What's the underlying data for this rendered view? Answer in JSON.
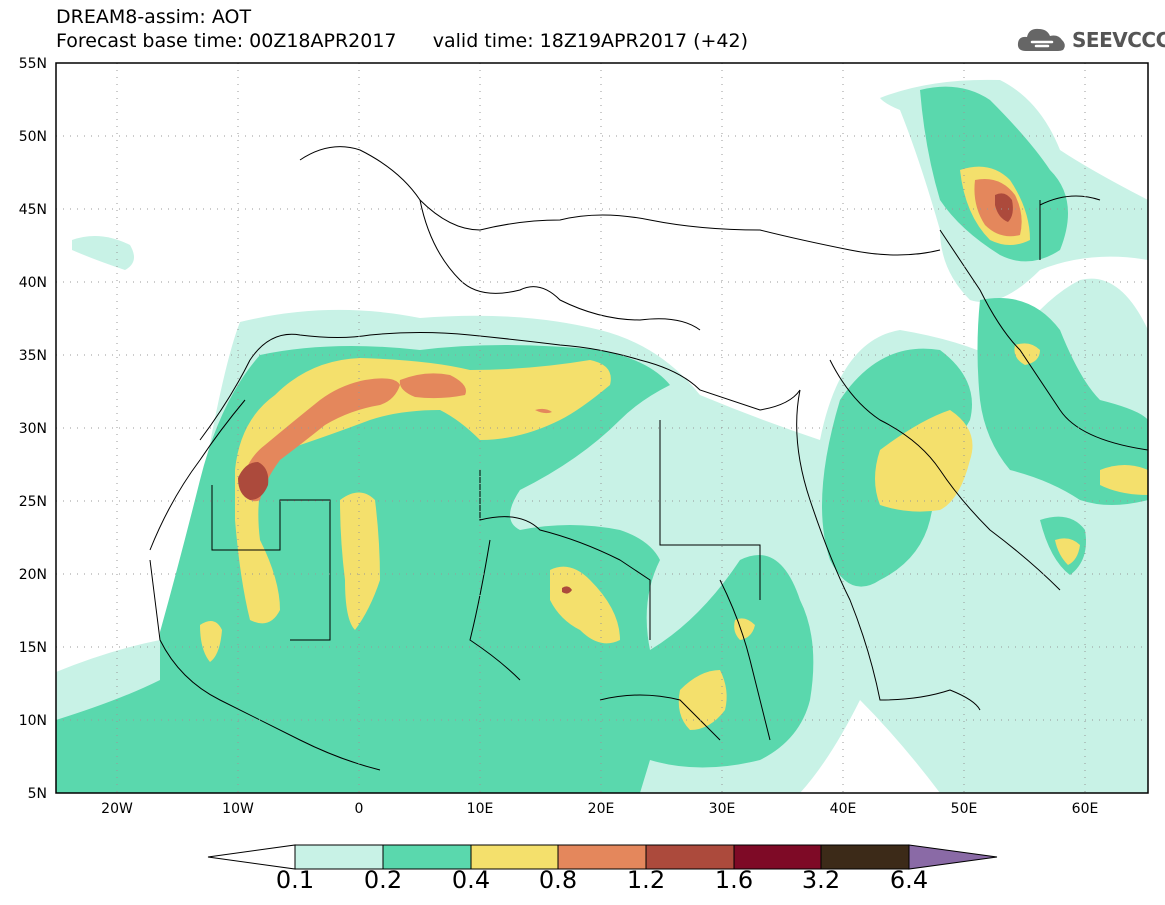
{
  "title": {
    "line1": "DREAM8-assim: AOT",
    "line2_base": "Forecast base time: 00Z18APR2017",
    "line2_valid": "valid time: 18Z19APR2017 (+42)"
  },
  "logo": {
    "text": "SEEVCCC",
    "icon": "cloud-icon"
  },
  "map": {
    "lon_range": [
      -25,
      65
    ],
    "lat_range": [
      5,
      55
    ],
    "lon_ticks": [
      "20W",
      "10W",
      "0",
      "10E",
      "20E",
      "30E",
      "40E",
      "50E",
      "60E"
    ],
    "lat_ticks": [
      "55N",
      "50N",
      "45N",
      "40N",
      "35N",
      "30N",
      "25N",
      "20N",
      "15N",
      "10N",
      "5N"
    ],
    "grid": "dotted"
  },
  "colorbar": {
    "labels": [
      "0.1",
      "0.2",
      "0.4",
      "0.8",
      "1.2",
      "1.6",
      "3.2",
      "6.4"
    ],
    "colors": [
      "#c8f2e6",
      "#5ad8ad",
      "#f4e06c",
      "#e4875c",
      "#ac4a3c",
      "#7e0a26",
      "#3c2a18"
    ],
    "under_color": "#ffffff",
    "over_color": "#8a6aa6"
  },
  "colors": {
    "level1": "#c8f2e6",
    "level2": "#5ad8ad",
    "level3": "#f4e06c",
    "level4": "#e4875c",
    "level5": "#ac4a3c"
  }
}
